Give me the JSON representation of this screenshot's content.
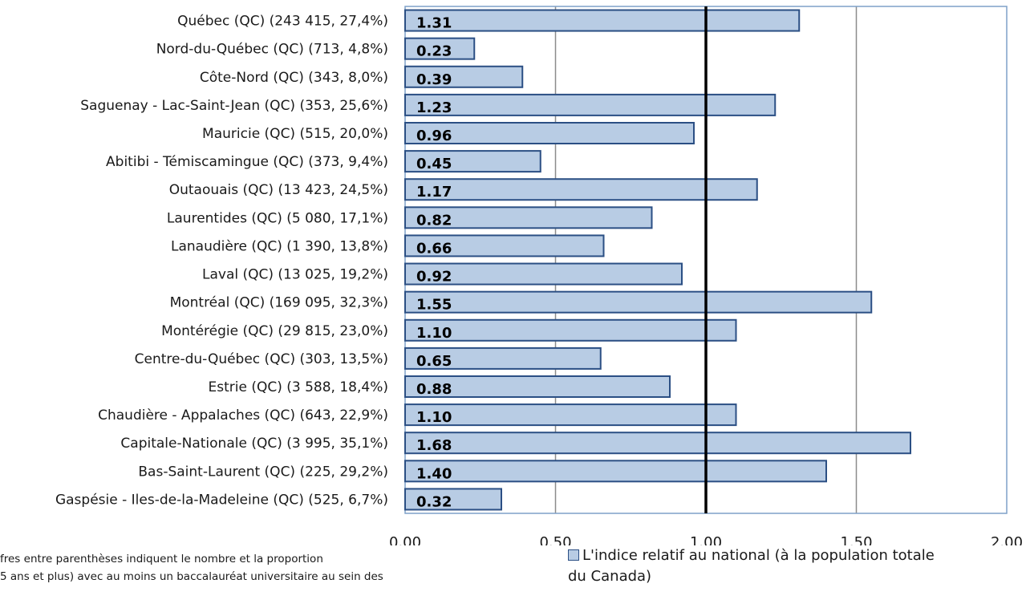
{
  "chart_data": {
    "type": "bar",
    "orientation": "horizontal",
    "categories": [
      "Québec (QC) (243 415, 27,4%)",
      "Nord-du-Québec (QC) (713, 4,8%)",
      "Côte-Nord (QC) (343, 8,0%)",
      "Saguenay - Lac-Saint-Jean (QC) (353, 25,6%)",
      "Mauricie (QC) (515, 20,0%)",
      "Abitibi - Témiscamingue (QC) (373, 9,4%)",
      "Outaouais (QC) (13 423, 24,5%)",
      "Laurentides (QC) (5 080, 17,1%)",
      "Lanaudière (QC) (1 390, 13,8%)",
      "Laval (QC) (13 025, 19,2%)",
      "Montréal (QC) (169 095, 32,3%)",
      "Montérégie (QC) (29 815, 23,0%)",
      "Centre-du-Québec (QC) (303, 13,5%)",
      "Estrie (QC) (3 588, 18,4%)",
      "Chaudière - Appalaches (QC) (643, 22,9%)",
      "Capitale-Nationale (QC) (3 995, 35,1%)",
      "Bas-Saint-Laurent (QC) (225, 29,2%)",
      "Gaspésie - Iles-de-la-Madeleine (QC) (525, 6,7%)"
    ],
    "series": [
      {
        "name": "L'indice relatif au national (à la population totale du Canada)",
        "values": [
          1.31,
          0.23,
          0.39,
          1.23,
          0.96,
          0.45,
          1.17,
          0.82,
          0.66,
          0.92,
          1.55,
          1.1,
          0.65,
          0.88,
          1.1,
          1.68,
          1.4,
          0.32
        ],
        "labels": [
          "1.31",
          "0.23",
          "0.39",
          "1.23",
          "0.96",
          "0.45",
          "1.17",
          "0.82",
          "0.66",
          "0.92",
          "1.55",
          "1.10",
          "0.65",
          "0.88",
          "1.10",
          "1.68",
          "1.40",
          "0.32"
        ],
        "color": "#b8cce4",
        "edge_color": "#2b4f84"
      }
    ],
    "xlim": [
      0,
      2
    ],
    "xticks": [
      "0.00",
      "0.50",
      "1.00",
      "1.50",
      "2.00"
    ],
    "reference_line": 1.0,
    "grid": "vertical",
    "legend_position": "bottom-right"
  },
  "footnote": {
    "line1": "fres entre parenthèses indiquent le nombre et la proportion",
    "line2": "5 ans et plus) avec au moins un baccalauréat universitaire au sein des"
  },
  "legend": {
    "label_line1": "L'indice relatif au national (à la population totale",
    "label_line2": "du Canada)"
  }
}
